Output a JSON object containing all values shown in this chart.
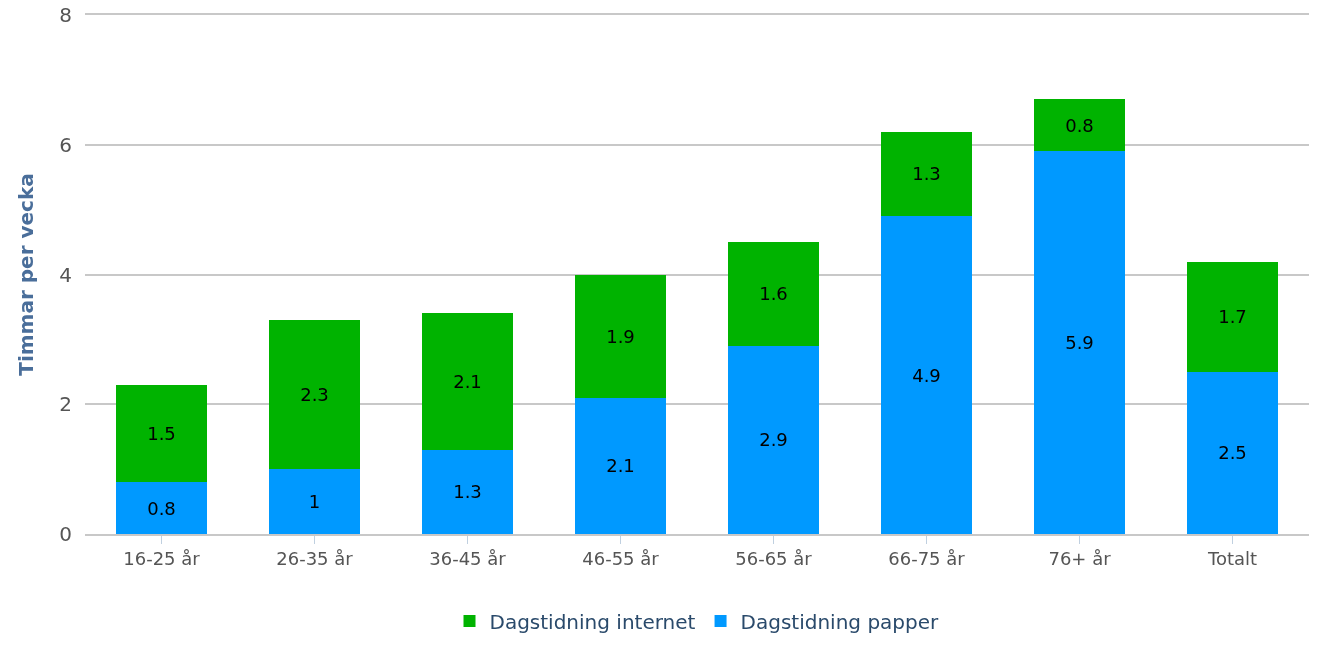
{
  "chart_data": {
    "type": "bar",
    "stacked": true,
    "ylabel": "Timmar per vecka",
    "categories": [
      "16-25 år",
      "26-35 år",
      "36-45 år",
      "46-55 år",
      "56-65 år",
      "66-75 år",
      "76+ år",
      "Totalt"
    ],
    "series": [
      {
        "name": "Dagstidning papper",
        "color": "#0099ff",
        "values": [
          0.8,
          1,
          1.3,
          2.1,
          2.9,
          4.9,
          5.9,
          2.5
        ]
      },
      {
        "name": "Dagstidning internet",
        "color": "#00b300",
        "values": [
          1.5,
          2.3,
          2.1,
          1.9,
          1.6,
          1.3,
          0.8,
          1.7
        ]
      }
    ],
    "ylim": [
      0,
      8
    ],
    "yticks": [
      0,
      2,
      4,
      6,
      8
    ],
    "grid": "y",
    "legend": "bottom",
    "data_labels": true
  }
}
